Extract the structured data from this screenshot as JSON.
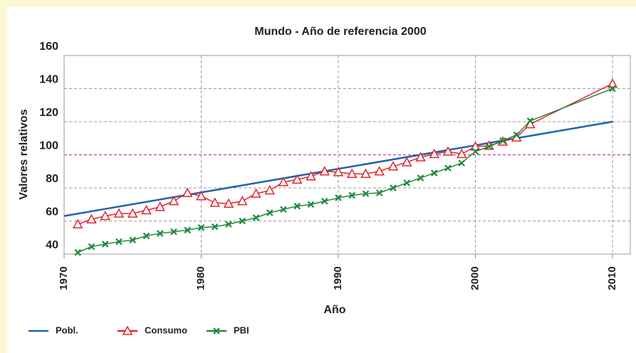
{
  "chart_data": {
    "type": "line",
    "title": "Mundo - Año de referencia 2000",
    "xlabel": "Año",
    "ylabel": "Valores relativos",
    "xlim": [
      1970,
      2011.3
    ],
    "ylim": [
      40,
      160
    ],
    "xticks": [
      1970,
      1980,
      1990,
      2000,
      2010
    ],
    "yticks": [
      40,
      60,
      80,
      100,
      120,
      140,
      160
    ],
    "grid": true,
    "reference_y": 100,
    "reference_color": "#c0408a",
    "legend": "bottom-left",
    "series": [
      {
        "name": "Pobl.",
        "color": "#1f63ad",
        "marker": "none",
        "x": [
          1970,
          2010
        ],
        "values": [
          63,
          120
        ]
      },
      {
        "name": "Consumo",
        "color": "#e0262f",
        "marker": "triangle",
        "x": [
          1971,
          1972,
          1973,
          1974,
          1975,
          1976,
          1977,
          1978,
          1979,
          1980,
          1981,
          1982,
          1983,
          1984,
          1985,
          1986,
          1987,
          1988,
          1989,
          1990,
          1991,
          1992,
          1993,
          1994,
          1995,
          1996,
          1997,
          1998,
          1999,
          2000,
          2001,
          2002,
          2003,
          2004,
          2010
        ],
        "values": [
          58,
          61,
          63,
          64.5,
          64.5,
          66.5,
          68.5,
          72,
          77,
          75,
          71,
          70.5,
          72,
          76.5,
          78.5,
          83.5,
          85,
          87,
          90,
          89.5,
          88.5,
          88.5,
          90,
          93,
          95.5,
          98.5,
          100.5,
          102,
          100.5,
          105,
          105.5,
          108,
          110.5,
          118.5,
          143
        ]
      },
      {
        "name": "PBI",
        "color": "#1e8a3c",
        "marker": "x",
        "x": [
          1971,
          1972,
          1973,
          1974,
          1975,
          1976,
          1977,
          1978,
          1979,
          1980,
          1981,
          1982,
          1983,
          1984,
          1985,
          1986,
          1987,
          1988,
          1989,
          1990,
          1991,
          1992,
          1993,
          1994,
          1995,
          1996,
          1997,
          1998,
          1999,
          2000,
          2001,
          2002,
          2003,
          2004,
          2010
        ],
        "values": [
          41,
          44.5,
          46,
          47.5,
          48.5,
          51,
          52.5,
          53.5,
          54.5,
          56,
          56.5,
          58,
          60,
          62,
          65,
          67,
          69,
          70,
          72,
          74,
          75.5,
          76.5,
          77,
          80,
          83,
          86,
          89,
          92,
          95,
          102,
          105,
          108.5,
          112,
          120.5,
          140
        ]
      }
    ]
  }
}
